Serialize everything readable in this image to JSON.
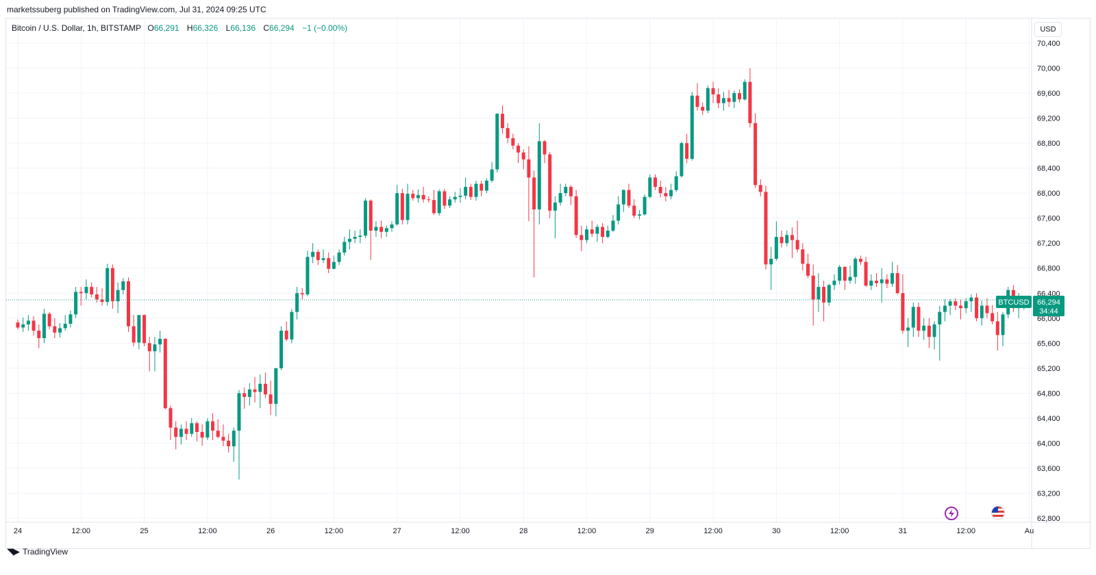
{
  "header": {
    "published_text": "marketssuberg published on TradingView.com, Jul 31, 2024 09:25 UTC"
  },
  "legend": {
    "symbol": "Bitcoin / U.S. Dollar, 1h, BITSTAMP",
    "open_label": "O",
    "open": "66,291",
    "high_label": "H",
    "high": "66,326",
    "low_label": "L",
    "low": "66,136",
    "close_label": "C",
    "close": "66,294",
    "change": "−1 (−0.00%)"
  },
  "currency_button": "USD",
  "price_tag": {
    "ticker": "BTCUSD",
    "price": "66,294",
    "countdown": "34:44"
  },
  "footer": {
    "brand": "TradingView"
  },
  "icons": {
    "lightning": "lightning-icon",
    "flag": "us-flag-icon"
  },
  "colors": {
    "up": "#089981",
    "down": "#f23645",
    "grid": "#f0f3fa",
    "last_price": "#089981"
  },
  "chart_data": {
    "type": "candlestick",
    "interval": "1h",
    "ylim": [
      62800,
      70400
    ],
    "y_ticks": [
      70400,
      70000,
      69600,
      69200,
      68800,
      68400,
      68000,
      67600,
      67200,
      66800,
      66400,
      66000,
      65600,
      65200,
      64800,
      64400,
      64000,
      63600,
      63200,
      62800
    ],
    "y_tick_labels": [
      "70,400",
      "70,000",
      "69,600",
      "69,200",
      "68,800",
      "68,400",
      "68,000",
      "67,600",
      "67,200",
      "66,800",
      "66,400",
      "66,000",
      "65,600",
      "65,200",
      "64,800",
      "64,400",
      "64,000",
      "63,600",
      "63,200",
      "62,800"
    ],
    "x_ticks": [
      {
        "label": "24",
        "hour": 0
      },
      {
        "label": "12:00",
        "hour": 12
      },
      {
        "label": "25",
        "hour": 24
      },
      {
        "label": "12:00",
        "hour": 36
      },
      {
        "label": "26",
        "hour": 48
      },
      {
        "label": "12:00",
        "hour": 60
      },
      {
        "label": "27",
        "hour": 72
      },
      {
        "label": "12:00",
        "hour": 84
      },
      {
        "label": "28",
        "hour": 96
      },
      {
        "label": "12:00",
        "hour": 108
      },
      {
        "label": "29",
        "hour": 120
      },
      {
        "label": "12:00",
        "hour": 132
      },
      {
        "label": "30",
        "hour": 144
      },
      {
        "label": "12:00",
        "hour": 156
      },
      {
        "label": "31",
        "hour": 168
      },
      {
        "label": "12:00",
        "hour": 180
      },
      {
        "label": "Au",
        "hour": 192
      }
    ],
    "last_price": 66294,
    "candles": [
      [
        65930,
        65980,
        65820,
        65850
      ],
      [
        65850,
        66010,
        65780,
        65900
      ],
      [
        65900,
        66050,
        65800,
        65960
      ],
      [
        65960,
        66030,
        65720,
        65800
      ],
      [
        65800,
        65900,
        65520,
        65680
      ],
      [
        65680,
        66150,
        65600,
        66070
      ],
      [
        66070,
        66100,
        65820,
        65870
      ],
      [
        65870,
        66000,
        65680,
        65770
      ],
      [
        65770,
        65920,
        65690,
        65840
      ],
      [
        65840,
        66050,
        65800,
        65910
      ],
      [
        65910,
        66120,
        65850,
        66060
      ],
      [
        66060,
        66500,
        66000,
        66420
      ],
      [
        66420,
        66500,
        66200,
        66400
      ],
      [
        66400,
        66620,
        66300,
        66500
      ],
      [
        66500,
        66570,
        66330,
        66380
      ],
      [
        66380,
        66500,
        66250,
        66300
      ],
      [
        66300,
        66480,
        66200,
        66260
      ],
      [
        66260,
        66870,
        66200,
        66800
      ],
      [
        66800,
        66860,
        66150,
        66270
      ],
      [
        66270,
        66570,
        66080,
        66450
      ],
      [
        66450,
        66640,
        66380,
        66590
      ],
      [
        66590,
        66650,
        65780,
        65870
      ],
      [
        65870,
        66050,
        65550,
        65610
      ],
      [
        65610,
        66000,
        65500,
        66050
      ],
      [
        66050,
        66060,
        65550,
        65600
      ],
      [
        65600,
        65700,
        65150,
        65470
      ],
      [
        65470,
        65700,
        65150,
        65580
      ],
      [
        65580,
        65800,
        65450,
        65670
      ],
      [
        65670,
        65680,
        64540,
        64560
      ],
      [
        64560,
        64600,
        64050,
        64250
      ],
      [
        64250,
        64350,
        63900,
        64100
      ],
      [
        64100,
        64300,
        63980,
        64230
      ],
      [
        64230,
        64350,
        64050,
        64150
      ],
      [
        64150,
        64400,
        64100,
        64320
      ],
      [
        64320,
        64350,
        64030,
        64180
      ],
      [
        64180,
        64300,
        63960,
        64090
      ],
      [
        64090,
        64400,
        64050,
        64350
      ],
      [
        64350,
        64480,
        64050,
        64200
      ],
      [
        64200,
        64380,
        64080,
        64100
      ],
      [
        64100,
        64300,
        63950,
        64040
      ],
      [
        64040,
        64150,
        63850,
        63950
      ],
      [
        63950,
        64250,
        63700,
        64200
      ],
      [
        64200,
        64850,
        63420,
        64800
      ],
      [
        64800,
        64890,
        64550,
        64740
      ],
      [
        64740,
        64960,
        64600,
        64860
      ],
      [
        64860,
        65060,
        64650,
        64820
      ],
      [
        64820,
        65100,
        64560,
        64950
      ],
      [
        64950,
        65130,
        64720,
        64780
      ],
      [
        64780,
        65000,
        64450,
        64630
      ],
      [
        64630,
        65200,
        64430,
        65200
      ],
      [
        65200,
        65870,
        65170,
        65800
      ],
      [
        65800,
        65950,
        65630,
        65660
      ],
      [
        65660,
        66150,
        65600,
        66100
      ],
      [
        66100,
        66500,
        65980,
        66400
      ],
      [
        66400,
        66480,
        66300,
        66380
      ],
      [
        66380,
        67080,
        66350,
        66980
      ],
      [
        66980,
        67200,
        66880,
        67060
      ],
      [
        67060,
        67100,
        66850,
        66930
      ],
      [
        66930,
        67100,
        66880,
        66960
      ],
      [
        66960,
        67050,
        66720,
        66790
      ],
      [
        66790,
        67000,
        66780,
        66900
      ],
      [
        66900,
        67100,
        66850,
        67050
      ],
      [
        67050,
        67300,
        67000,
        67220
      ],
      [
        67220,
        67420,
        67100,
        67270
      ],
      [
        67270,
        67400,
        67200,
        67300
      ],
      [
        67300,
        67420,
        67200,
        67320
      ],
      [
        67320,
        67920,
        67280,
        67880
      ],
      [
        67880,
        67900,
        66930,
        67400
      ],
      [
        67400,
        67550,
        67300,
        67460
      ],
      [
        67460,
        67560,
        67280,
        67380
      ],
      [
        67380,
        67480,
        67300,
        67440
      ],
      [
        67440,
        67550,
        67380,
        67500
      ],
      [
        67500,
        68130,
        67480,
        68000
      ],
      [
        68000,
        68070,
        67500,
        67570
      ],
      [
        67570,
        68150,
        67500,
        67990
      ],
      [
        67990,
        68050,
        67880,
        67920
      ],
      [
        67920,
        68060,
        67850,
        67970
      ],
      [
        67970,
        68100,
        67850,
        67900
      ],
      [
        67900,
        67950,
        67850,
        67890
      ],
      [
        67890,
        68050,
        67650,
        67680
      ],
      [
        67680,
        68060,
        67640,
        68030
      ],
      [
        68030,
        68070,
        67750,
        67800
      ],
      [
        67800,
        67950,
        67760,
        67900
      ],
      [
        67900,
        68020,
        67850,
        67940
      ],
      [
        67940,
        68080,
        67850,
        67960
      ],
      [
        67960,
        68250,
        67900,
        68100
      ],
      [
        68100,
        68150,
        67890,
        67940
      ],
      [
        67940,
        68200,
        67880,
        68150
      ],
      [
        68150,
        68200,
        67950,
        68040
      ],
      [
        68040,
        68240,
        68000,
        68200
      ],
      [
        68200,
        68500,
        68170,
        68380
      ],
      [
        68380,
        69280,
        68330,
        69270
      ],
      [
        69270,
        69400,
        68950,
        69040
      ],
      [
        69040,
        69120,
        68800,
        68880
      ],
      [
        68880,
        68950,
        68700,
        68760
      ],
      [
        68760,
        68800,
        68480,
        68650
      ],
      [
        68650,
        68700,
        68380,
        68540
      ],
      [
        68540,
        68750,
        67550,
        68250
      ],
      [
        68250,
        68360,
        66650,
        67740
      ],
      [
        67740,
        69120,
        67500,
        68830
      ],
      [
        68830,
        68850,
        68480,
        68620
      ],
      [
        68620,
        68660,
        67600,
        67720
      ],
      [
        67720,
        67950,
        67280,
        67850
      ],
      [
        67850,
        68150,
        67800,
        68000
      ],
      [
        68000,
        68150,
        67950,
        68100
      ],
      [
        68100,
        68130,
        67810,
        67950
      ],
      [
        67950,
        68050,
        67280,
        67330
      ],
      [
        67330,
        67480,
        67070,
        67250
      ],
      [
        67250,
        67480,
        67200,
        67420
      ],
      [
        67420,
        67560,
        67300,
        67350
      ],
      [
        67350,
        67500,
        67220,
        67460
      ],
      [
        67460,
        67520,
        67200,
        67300
      ],
      [
        67300,
        67480,
        67280,
        67400
      ],
      [
        67400,
        67650,
        67380,
        67560
      ],
      [
        67560,
        67950,
        67500,
        67820
      ],
      [
        67820,
        68060,
        67700,
        68050
      ],
      [
        68050,
        68150,
        67760,
        67800
      ],
      [
        67800,
        67900,
        67600,
        67640
      ],
      [
        67640,
        67730,
        67580,
        67660
      ],
      [
        67660,
        67980,
        67640,
        67940
      ],
      [
        67940,
        68300,
        67920,
        68250
      ],
      [
        68250,
        68300,
        68050,
        68100
      ],
      [
        68100,
        68200,
        67930,
        68000
      ],
      [
        68000,
        68100,
        67870,
        67950
      ],
      [
        67950,
        68150,
        67900,
        68050
      ],
      [
        68050,
        68350,
        68020,
        68270
      ],
      [
        68270,
        68820,
        68250,
        68800
      ],
      [
        68800,
        68950,
        68480,
        68550
      ],
      [
        68550,
        69620,
        68520,
        69560
      ],
      [
        69560,
        69760,
        69320,
        69380
      ],
      [
        69380,
        69450,
        69250,
        69320
      ],
      [
        69320,
        69720,
        69280,
        69680
      ],
      [
        69680,
        69780,
        69440,
        69580
      ],
      [
        69580,
        69680,
        69360,
        69440
      ],
      [
        69440,
        69620,
        69320,
        69520
      ],
      [
        69520,
        69650,
        69380,
        69460
      ],
      [
        69460,
        69640,
        69360,
        69600
      ],
      [
        69600,
        69660,
        69450,
        69500
      ],
      [
        69500,
        69820,
        69480,
        69780
      ],
      [
        69780,
        70000,
        69050,
        69120
      ],
      [
        69120,
        69280,
        68080,
        68130
      ],
      [
        68130,
        68220,
        67950,
        68020
      ],
      [
        68020,
        68120,
        66780,
        66860
      ],
      [
        66860,
        67140,
        66450,
        66950
      ],
      [
        66950,
        67550,
        66920,
        67300
      ],
      [
        67300,
        67400,
        67130,
        67200
      ],
      [
        67200,
        67400,
        67150,
        67330
      ],
      [
        67330,
        67450,
        66960,
        67250
      ],
      [
        67250,
        67560,
        67050,
        67100
      ],
      [
        67100,
        67200,
        66760,
        66870
      ],
      [
        66870,
        67030,
        66640,
        66680
      ],
      [
        66680,
        66860,
        65880,
        66300
      ],
      [
        66300,
        66720,
        66100,
        66500
      ],
      [
        66500,
        66600,
        65950,
        66250
      ],
      [
        66250,
        66550,
        66200,
        66530
      ],
      [
        66530,
        66700,
        66450,
        66600
      ],
      [
        66600,
        66850,
        66540,
        66820
      ],
      [
        66820,
        66830,
        66450,
        66600
      ],
      [
        66600,
        66840,
        66550,
        66660
      ],
      [
        66660,
        66980,
        66550,
        66950
      ],
      [
        66950,
        67000,
        66850,
        66900
      ],
      [
        66900,
        66980,
        66500,
        66520
      ],
      [
        66520,
        66700,
        66450,
        66600
      ],
      [
        66600,
        66720,
        66500,
        66560
      ],
      [
        66560,
        66800,
        66250,
        66620
      ],
      [
        66620,
        66700,
        66480,
        66550
      ],
      [
        66550,
        66900,
        66500,
        66720
      ],
      [
        66720,
        66850,
        66380,
        66400
      ],
      [
        66400,
        66700,
        65750,
        65800
      ],
      [
        65800,
        66000,
        65540,
        65850
      ],
      [
        65850,
        66250,
        65700,
        66180
      ],
      [
        66180,
        66250,
        65700,
        65800
      ],
      [
        65800,
        66000,
        65650,
        65880
      ],
      [
        65880,
        66000,
        65520,
        65700
      ],
      [
        65700,
        65950,
        65500,
        65900
      ],
      [
        65900,
        66200,
        65320,
        66100
      ],
      [
        66100,
        66300,
        65950,
        66200
      ],
      [
        66200,
        66310,
        66050,
        66270
      ],
      [
        66270,
        66320,
        66130,
        66200
      ],
      [
        66200,
        66290,
        65980,
        66160
      ],
      [
        66160,
        66320,
        66080,
        66270
      ],
      [
        66270,
        66380,
        66100,
        66330
      ],
      [
        66330,
        66400,
        65950,
        66000
      ],
      [
        66000,
        66280,
        65880,
        66200
      ],
      [
        66200,
        66320,
        66000,
        66080
      ],
      [
        66080,
        66210,
        65900,
        65950
      ],
      [
        65950,
        66100,
        65480,
        65730
      ],
      [
        65730,
        66100,
        65550,
        66060
      ],
      [
        66060,
        66500,
        66000,
        66450
      ],
      [
        66450,
        66530,
        66100,
        66160
      ],
      [
        66160,
        66400,
        66000,
        66290
      ],
      [
        66291,
        66326,
        66136,
        66294
      ]
    ]
  }
}
